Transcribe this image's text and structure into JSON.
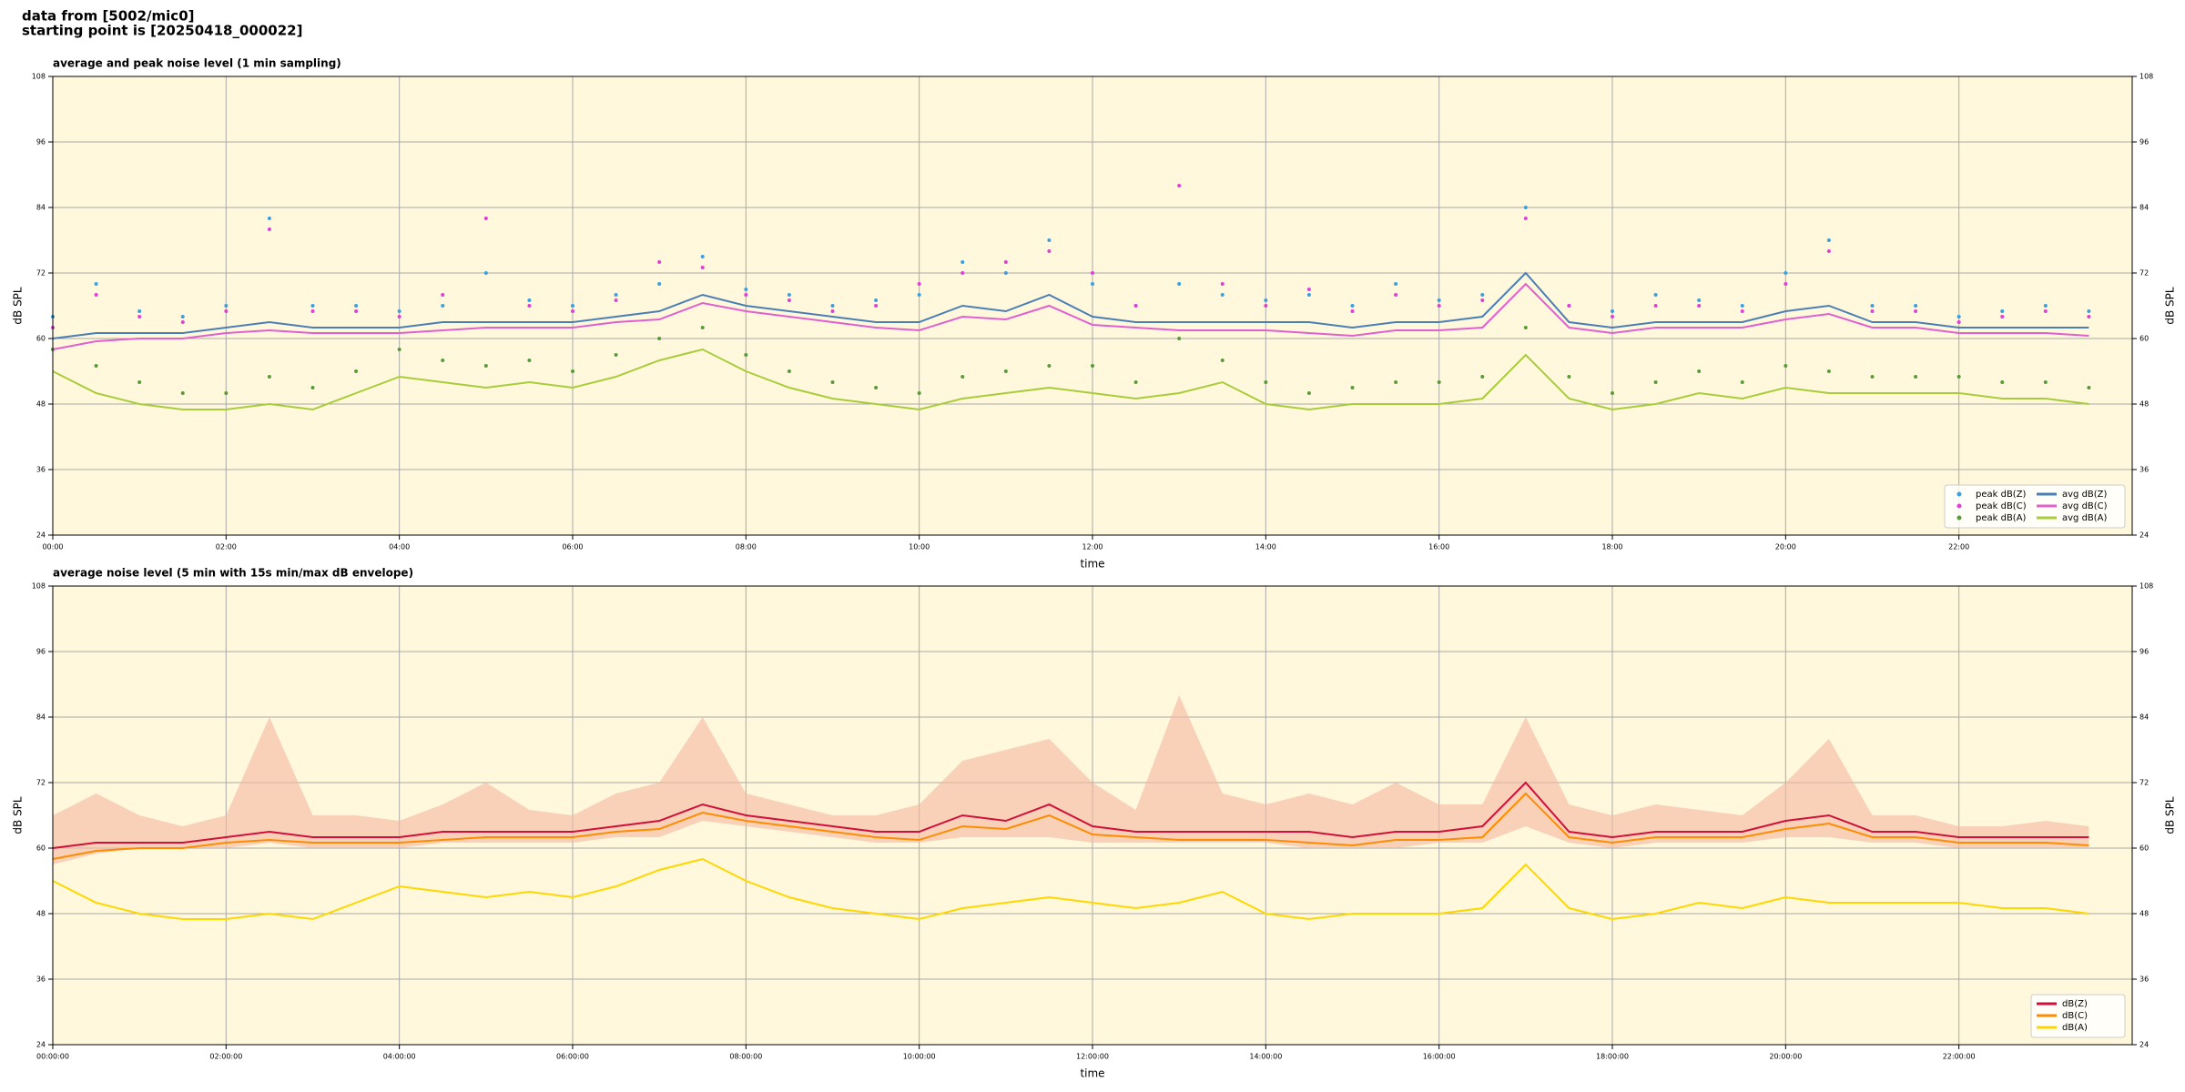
{
  "header": {
    "lines": [
      "data from [5002/mic0]",
      "starting point is [20250418_000022]"
    ]
  },
  "chart_data": [
    {
      "type": "line",
      "title": "average and peak noise level (1 min sampling)",
      "xlabel": "time",
      "ylabel": "dB SPL",
      "xlim": [
        0,
        1440
      ],
      "ylim": [
        24,
        108
      ],
      "yticks": [
        24,
        36,
        48,
        60,
        72,
        84,
        96,
        108
      ],
      "xticks": [
        {
          "value": 0,
          "label": "00:00"
        },
        {
          "value": 120,
          "label": "02:00"
        },
        {
          "value": 240,
          "label": "04:00"
        },
        {
          "value": 360,
          "label": "06:00"
        },
        {
          "value": 480,
          "label": "08:00"
        },
        {
          "value": 600,
          "label": "10:00"
        },
        {
          "value": 720,
          "label": "12:00"
        },
        {
          "value": 840,
          "label": "14:00"
        },
        {
          "value": 960,
          "label": "16:00"
        },
        {
          "value": 1080,
          "label": "18:00"
        },
        {
          "value": 1200,
          "label": "20:00"
        },
        {
          "value": 1320,
          "label": "22:00"
        }
      ],
      "grid": true,
      "legend": "lower right",
      "background": "#fff8dc",
      "x": [
        0,
        30,
        60,
        90,
        120,
        150,
        180,
        210,
        240,
        270,
        300,
        330,
        360,
        390,
        420,
        450,
        480,
        510,
        540,
        570,
        600,
        630,
        660,
        690,
        720,
        750,
        780,
        810,
        840,
        870,
        900,
        930,
        960,
        990,
        1020,
        1050,
        1080,
        1110,
        1140,
        1170,
        1200,
        1230,
        1260,
        1290,
        1320,
        1350,
        1380,
        1410
      ],
      "series": [
        {
          "name": "peak dB(Z)",
          "type": "scatter",
          "color": "#3aa0e0",
          "values": [
            64,
            70,
            65,
            64,
            66,
            82,
            66,
            66,
            65,
            66,
            72,
            67,
            66,
            68,
            70,
            75,
            69,
            68,
            66,
            67,
            68,
            74,
            72,
            78,
            70,
            66,
            70,
            68,
            67,
            68,
            66,
            70,
            67,
            68,
            84,
            66,
            65,
            68,
            67,
            66,
            72,
            78,
            66,
            66,
            64,
            65,
            66,
            65
          ]
        },
        {
          "name": "peak dB(C)",
          "type": "scatter",
          "color": "#e040d8",
          "values": [
            62,
            68,
            64,
            63,
            65,
            80,
            65,
            65,
            64,
            68,
            82,
            66,
            65,
            67,
            74,
            73,
            68,
            67,
            65,
            66,
            70,
            72,
            74,
            76,
            72,
            66,
            88,
            70,
            66,
            69,
            65,
            68,
            66,
            67,
            82,
            66,
            64,
            66,
            66,
            65,
            70,
            76,
            65,
            65,
            63,
            64,
            65,
            64
          ]
        },
        {
          "name": "peak dB(A)",
          "type": "scatter",
          "color": "#5a9a3a",
          "values": [
            58,
            55,
            52,
            50,
            50,
            53,
            51,
            54,
            58,
            56,
            55,
            56,
            54,
            57,
            60,
            62,
            57,
            54,
            52,
            51,
            50,
            53,
            54,
            55,
            55,
            52,
            60,
            56,
            52,
            50,
            51,
            52,
            52,
            53,
            62,
            53,
            50,
            52,
            54,
            52,
            55,
            54,
            53,
            53,
            53,
            52,
            52,
            51
          ]
        },
        {
          "name": "avg dB(Z)",
          "type": "line",
          "color": "#4a7fb5",
          "values": [
            60,
            61,
            61,
            61,
            62,
            63,
            62,
            62,
            62,
            63,
            63,
            63,
            63,
            64,
            65,
            68,
            66,
            65,
            64,
            63,
            63,
            66,
            65,
            68,
            64,
            63,
            63,
            63,
            63,
            63,
            62,
            63,
            63,
            64,
            72,
            63,
            62,
            63,
            63,
            63,
            65,
            66,
            63,
            63,
            62,
            62,
            62,
            62
          ]
        },
        {
          "name": "avg dB(C)",
          "type": "line",
          "color": "#e060d0",
          "values": [
            58,
            59.5,
            60,
            60,
            61,
            61.5,
            61,
            61,
            61,
            61.5,
            62,
            62,
            62,
            63,
            63.5,
            66.5,
            65,
            64,
            63,
            62,
            61.5,
            64,
            63.5,
            66,
            62.5,
            62,
            61.5,
            61.5,
            61.5,
            61,
            60.5,
            61.5,
            61.5,
            62,
            70,
            62,
            61,
            62,
            62,
            62,
            63.5,
            64.5,
            62,
            62,
            61,
            61,
            61,
            60.5
          ]
        },
        {
          "name": "avg dB(A)",
          "type": "line",
          "color": "#a8cc3a",
          "values": [
            54,
            50,
            48,
            47,
            47,
            48,
            47,
            50,
            53,
            52,
            51,
            52,
            51,
            53,
            56,
            58,
            54,
            51,
            49,
            48,
            47,
            49,
            50,
            51,
            50,
            49,
            50,
            52,
            48,
            47,
            48,
            48,
            48,
            49,
            57,
            49,
            47,
            48,
            50,
            49,
            51,
            50,
            50,
            50,
            50,
            49,
            49,
            48
          ]
        }
      ]
    },
    {
      "type": "line",
      "title": "average noise level (5 min with 15s min/max dB envelope)",
      "xlabel": "time",
      "ylabel": "dB SPL",
      "xlim": [
        0,
        1440
      ],
      "ylim": [
        24,
        108
      ],
      "yticks": [
        24,
        36,
        48,
        60,
        72,
        84,
        96,
        108
      ],
      "xticks": [
        {
          "value": 0,
          "label": "00:00:00"
        },
        {
          "value": 120,
          "label": "02:00:00"
        },
        {
          "value": 240,
          "label": "04:00:00"
        },
        {
          "value": 360,
          "label": "06:00:00"
        },
        {
          "value": 480,
          "label": "08:00:00"
        },
        {
          "value": 600,
          "label": "10:00:00"
        },
        {
          "value": 720,
          "label": "12:00:00"
        },
        {
          "value": 840,
          "label": "14:00:00"
        },
        {
          "value": 960,
          "label": "16:00:00"
        },
        {
          "value": 1080,
          "label": "18:00:00"
        },
        {
          "value": 1200,
          "label": "20:00:00"
        },
        {
          "value": 1320,
          "label": "22:00:00"
        }
      ],
      "grid": true,
      "legend": "lower right",
      "background": "#fff8dc",
      "x": [
        0,
        30,
        60,
        90,
        120,
        150,
        180,
        210,
        240,
        270,
        300,
        330,
        360,
        390,
        420,
        450,
        480,
        510,
        540,
        570,
        600,
        630,
        660,
        690,
        720,
        750,
        780,
        810,
        840,
        870,
        900,
        930,
        960,
        990,
        1020,
        1050,
        1080,
        1110,
        1140,
        1170,
        1200,
        1230,
        1260,
        1290,
        1320,
        1350,
        1380,
        1410
      ],
      "band": {
        "color": "#f4b8a0",
        "upper": [
          66,
          70,
          66,
          64,
          66,
          84,
          66,
          66,
          65,
          68,
          72,
          67,
          66,
          70,
          72,
          84,
          70,
          68,
          66,
          66,
          68,
          76,
          78,
          80,
          72,
          67,
          88,
          70,
          68,
          70,
          68,
          72,
          68,
          68,
          84,
          68,
          66,
          68,
          67,
          66,
          72,
          80,
          66,
          66,
          64,
          64,
          65,
          64
        ],
        "lower": [
          57,
          59,
          60,
          60,
          60,
          61,
          60,
          60,
          60,
          61,
          61,
          61,
          61,
          62,
          62,
          65,
          64,
          63,
          62,
          61,
          61,
          62,
          62,
          62,
          61,
          61,
          61,
          61,
          61,
          60,
          60,
          60,
          61,
          61,
          64,
          61,
          60,
          61,
          61,
          61,
          62,
          62,
          61,
          61,
          60,
          60,
          60,
          60
        ]
      },
      "series": [
        {
          "name": "dB(Z)",
          "type": "line",
          "color": "#d0103a",
          "values": [
            60,
            61,
            61,
            61,
            62,
            63,
            62,
            62,
            62,
            63,
            63,
            63,
            63,
            64,
            65,
            68,
            66,
            65,
            64,
            63,
            63,
            66,
            65,
            68,
            64,
            63,
            63,
            63,
            63,
            63,
            62,
            63,
            63,
            64,
            72,
            63,
            62,
            63,
            63,
            63,
            65,
            66,
            63,
            63,
            62,
            62,
            62,
            62
          ]
        },
        {
          "name": "dB(C)",
          "type": "line",
          "color": "#ff8c00",
          "values": [
            58,
            59.5,
            60,
            60,
            61,
            61.5,
            61,
            61,
            61,
            61.5,
            62,
            62,
            62,
            63,
            63.5,
            66.5,
            65,
            64,
            63,
            62,
            61.5,
            64,
            63.5,
            66,
            62.5,
            62,
            61.5,
            61.5,
            61.5,
            61,
            60.5,
            61.5,
            61.5,
            62,
            70,
            62,
            61,
            62,
            62,
            62,
            63.5,
            64.5,
            62,
            62,
            61,
            61,
            61,
            60.5
          ]
        },
        {
          "name": "dB(A)",
          "type": "line",
          "color": "#ffd700",
          "values": [
            54,
            50,
            48,
            47,
            47,
            48,
            47,
            50,
            53,
            52,
            51,
            52,
            51,
            53,
            56,
            58,
            54,
            51,
            49,
            48,
            47,
            49,
            50,
            51,
            50,
            49,
            50,
            52,
            48,
            47,
            48,
            48,
            48,
            49,
            57,
            49,
            47,
            48,
            50,
            49,
            51,
            50,
            50,
            50,
            50,
            49,
            49,
            48
          ]
        }
      ]
    }
  ]
}
